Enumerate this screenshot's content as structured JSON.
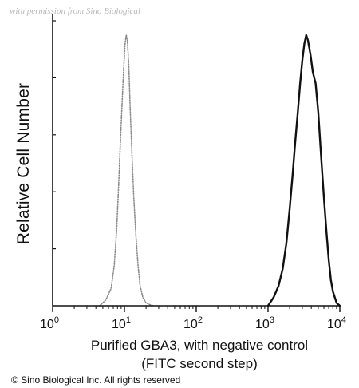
{
  "watermark": "with permission from Sino Biological",
  "copyright": "© Sino Biological Inc. All rights reserved",
  "chart_data": {
    "type": "line",
    "xlabel_lines": [
      "Purified GBA3, with negative control",
      "(FITC second step)"
    ],
    "ylabel": "Relative Cell Number",
    "xscale": "log",
    "xlim": [
      1,
      10000
    ],
    "x_ticks": [
      {
        "base": "10",
        "exp": "0"
      },
      {
        "base": "10",
        "exp": "1"
      },
      {
        "base": "10",
        "exp": "2"
      },
      {
        "base": "10",
        "exp": "3"
      },
      {
        "base": "10",
        "exp": "4"
      }
    ],
    "ylim": [
      0,
      100
    ],
    "grid": false,
    "series": [
      {
        "style": "dotted",
        "color": "#8a8a8a",
        "x": [
          4.5,
          5.5,
          6.5,
          7.2,
          7.8,
          8.3,
          8.8,
          9.3,
          9.8,
          10.2,
          10.6,
          11.0,
          11.5,
          12.0,
          12.7,
          13.5,
          14.5,
          15.5,
          16.5,
          18,
          20,
          22,
          25
        ],
        "y": [
          0,
          2,
          6,
          14,
          27,
          42,
          58,
          72,
          84,
          92,
          95,
          93,
          84,
          70,
          54,
          38,
          24,
          14,
          7,
          3,
          1,
          0.5,
          0
        ]
      },
      {
        "style": "solid",
        "color": "#111111",
        "x": [
          1000,
          1200,
          1400,
          1600,
          1800,
          2000,
          2200,
          2400,
          2600,
          2800,
          3000,
          3200,
          3400,
          3600,
          3900,
          4200,
          4600,
          5000,
          5500,
          6000,
          6500,
          7000,
          7500,
          8000,
          9000,
          10000
        ],
        "y": [
          0,
          3,
          7,
          13,
          22,
          34,
          46,
          58,
          68,
          78,
          86,
          92,
          95,
          93,
          88,
          82,
          78,
          68,
          52,
          38,
          26,
          16,
          9,
          5,
          1,
          0
        ]
      }
    ]
  }
}
